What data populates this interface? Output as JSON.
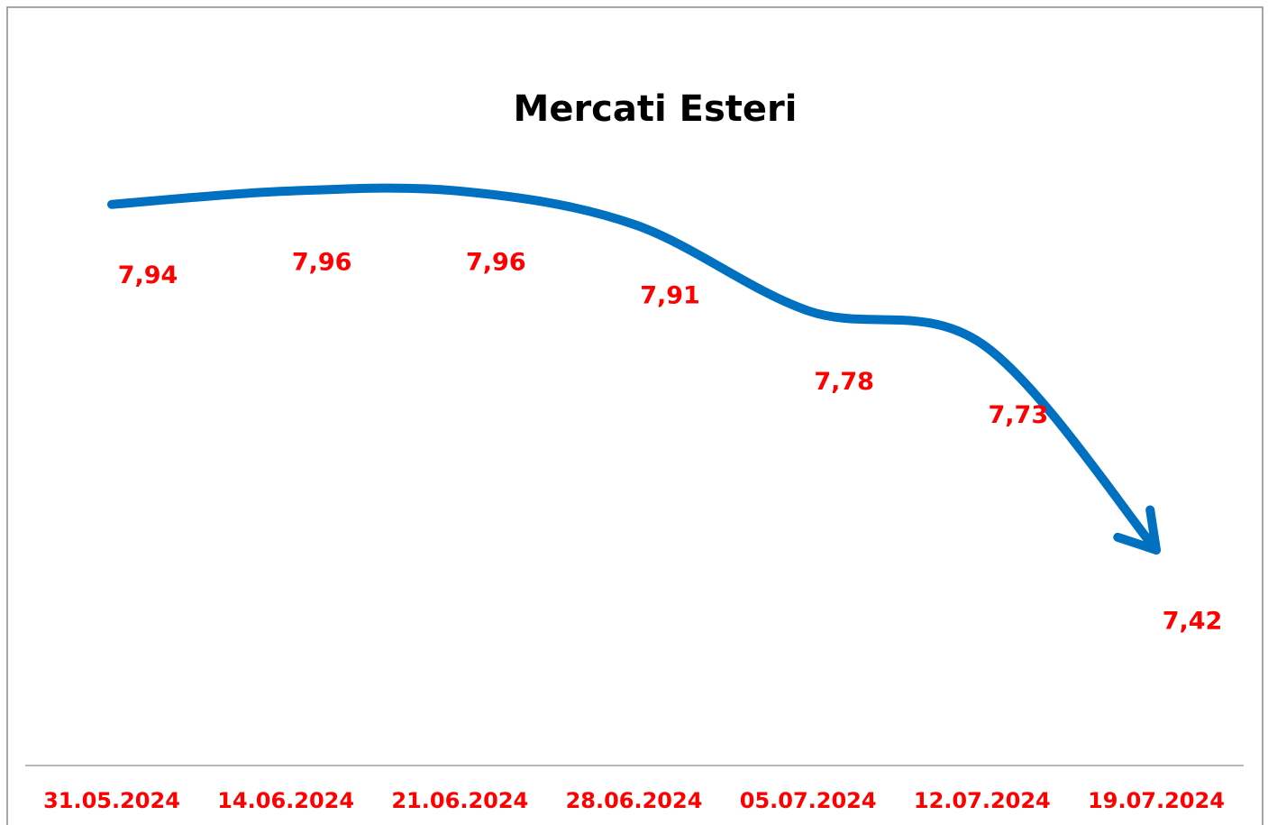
{
  "chart_data": {
    "type": "line",
    "title": "Mercati Esteri",
    "categories": [
      "31.05.2024",
      "14.06.2024",
      "21.06.2024",
      "28.06.2024",
      "05.07.2024",
      "12.07.2024",
      "19.07.2024"
    ],
    "values": [
      7.94,
      7.96,
      7.96,
      7.91,
      7.78,
      7.73,
      7.42
    ],
    "value_labels": [
      "7,94",
      "7,96",
      "7,96",
      "7,91",
      "7,78",
      "7,73",
      "7,42"
    ],
    "color": "#0070c0",
    "label_color": "#ff0000"
  }
}
